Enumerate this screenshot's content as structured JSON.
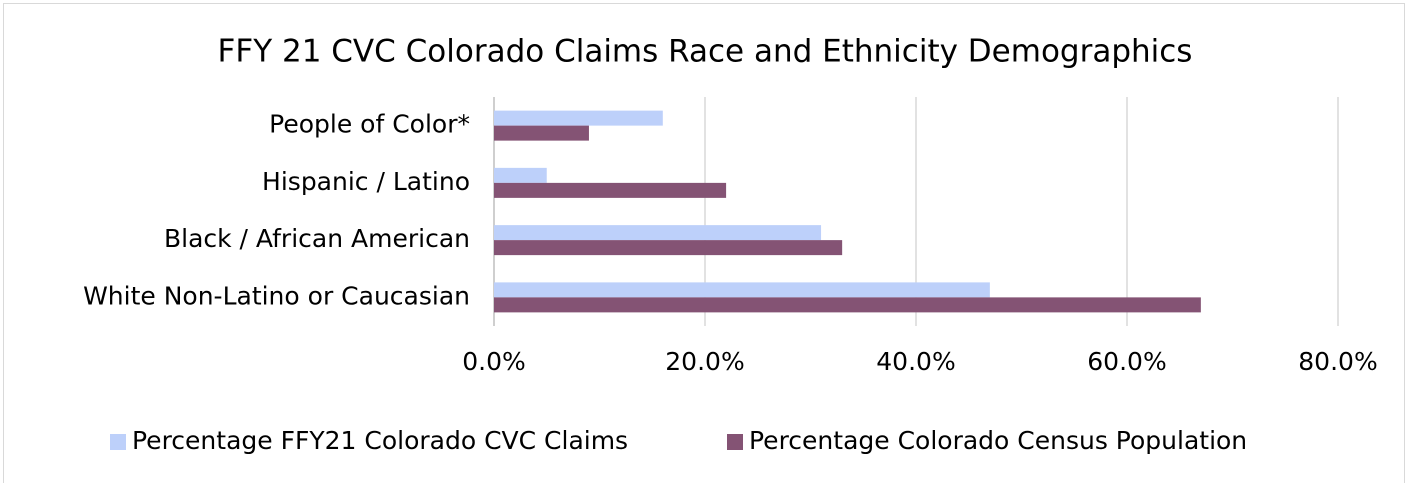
{
  "chart_data": {
    "type": "bar",
    "orientation": "horizontal",
    "title": "FFY 21 CVC Colorado Claims Race and Ethnicity Demographics",
    "categories": [
      "People of Color*",
      "Hispanic / Latino",
      "Black / African American",
      "White Non-Latino or Caucasian"
    ],
    "series": [
      {
        "name": "Percentage FFY21 Colorado CVC Claims",
        "color": "#bdd0fa",
        "values": [
          16,
          5,
          31,
          47
        ]
      },
      {
        "name": "Percentage Colorado Census Population",
        "color": "#845374",
        "values": [
          9,
          22,
          33,
          67
        ]
      }
    ],
    "xlim": [
      0,
      80
    ],
    "xticks": [
      {
        "value": 0,
        "label": "0.0%"
      },
      {
        "value": 20,
        "label": "20.0%"
      },
      {
        "value": 40,
        "label": "40.0%"
      },
      {
        "value": 60,
        "label": "60.0%"
      },
      {
        "value": 80,
        "label": "80.0%"
      }
    ],
    "grid": true,
    "legend": "bottom"
  }
}
